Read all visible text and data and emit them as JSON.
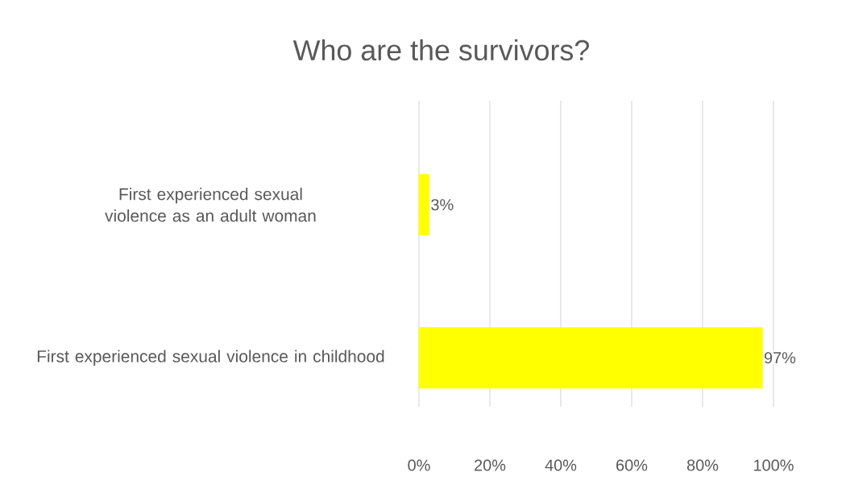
{
  "chart_data": {
    "type": "bar",
    "orientation": "horizontal",
    "title": "Who are the survivors?",
    "categories": [
      "First experienced sexual violence as an adult woman",
      "First experienced sexual violence in childhood"
    ],
    "values": [
      3,
      97
    ],
    "value_labels": [
      "3%",
      "97%"
    ],
    "color": "#ffff00",
    "xlim": [
      0,
      100
    ],
    "xticks": [
      {
        "value": 0,
        "label": "0%"
      },
      {
        "value": 20,
        "label": "20%"
      },
      {
        "value": 40,
        "label": "40%"
      },
      {
        "value": 60,
        "label": "60%"
      },
      {
        "value": 80,
        "label": "80%"
      },
      {
        "value": 100,
        "label": "100%"
      }
    ],
    "grid": "x"
  }
}
